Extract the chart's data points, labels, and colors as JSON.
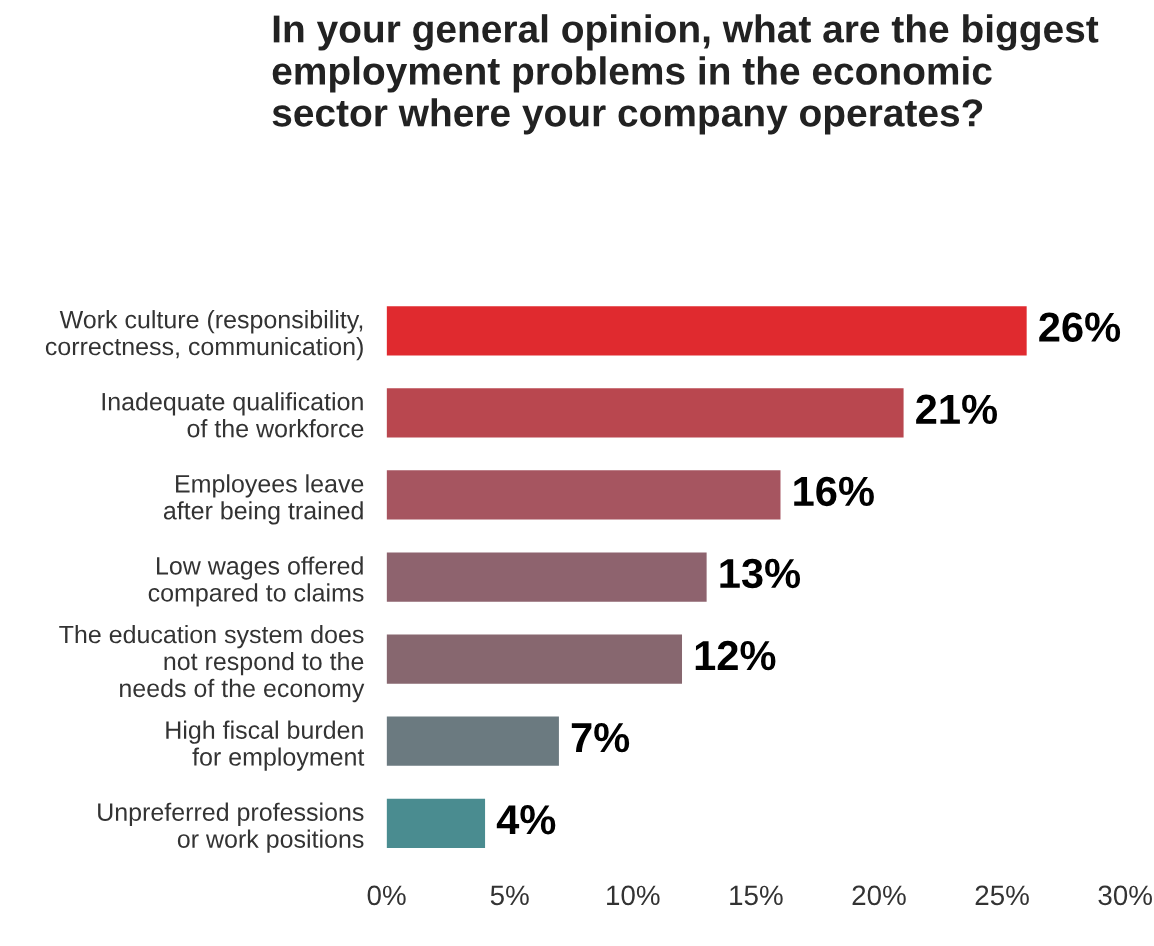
{
  "chart_data": {
    "type": "bar",
    "orientation": "horizontal",
    "title": "In your general opinion, what are the biggest\nemployment problems in the economic\nsector where your company operates?",
    "categories": [
      "Work culture (responsibility,\ncorrectness, communication)",
      "Inadequate qualification\nof the workforce",
      "Employees leave\nafter being trained",
      "Low wages offered\ncompared to claims",
      "The education system does\nnot respond to the\nneeds of the economy",
      "High fiscal burden\nfor employment",
      "Unpreferred professions\nor work positions"
    ],
    "values": [
      26,
      21,
      16,
      13,
      12,
      7,
      4
    ],
    "value_labels": [
      "26%",
      "21%",
      "16%",
      "13%",
      "12%",
      "7%",
      "4%"
    ],
    "colors": [
      "#e02a2f",
      "#b9474f",
      "#a65560",
      "#8e636e",
      "#87676f",
      "#6b7a80",
      "#4a8c90"
    ],
    "xlim": [
      0,
      30
    ],
    "xticks": [
      {
        "value": 0,
        "label": "0%"
      },
      {
        "value": 5,
        "label": "5%"
      },
      {
        "value": 10,
        "label": "10%"
      },
      {
        "value": 15,
        "label": "15%"
      },
      {
        "value": 20,
        "label": "20%"
      },
      {
        "value": 25,
        "label": "25%"
      },
      {
        "value": 30,
        "label": "30%"
      }
    ],
    "grid": false
  }
}
